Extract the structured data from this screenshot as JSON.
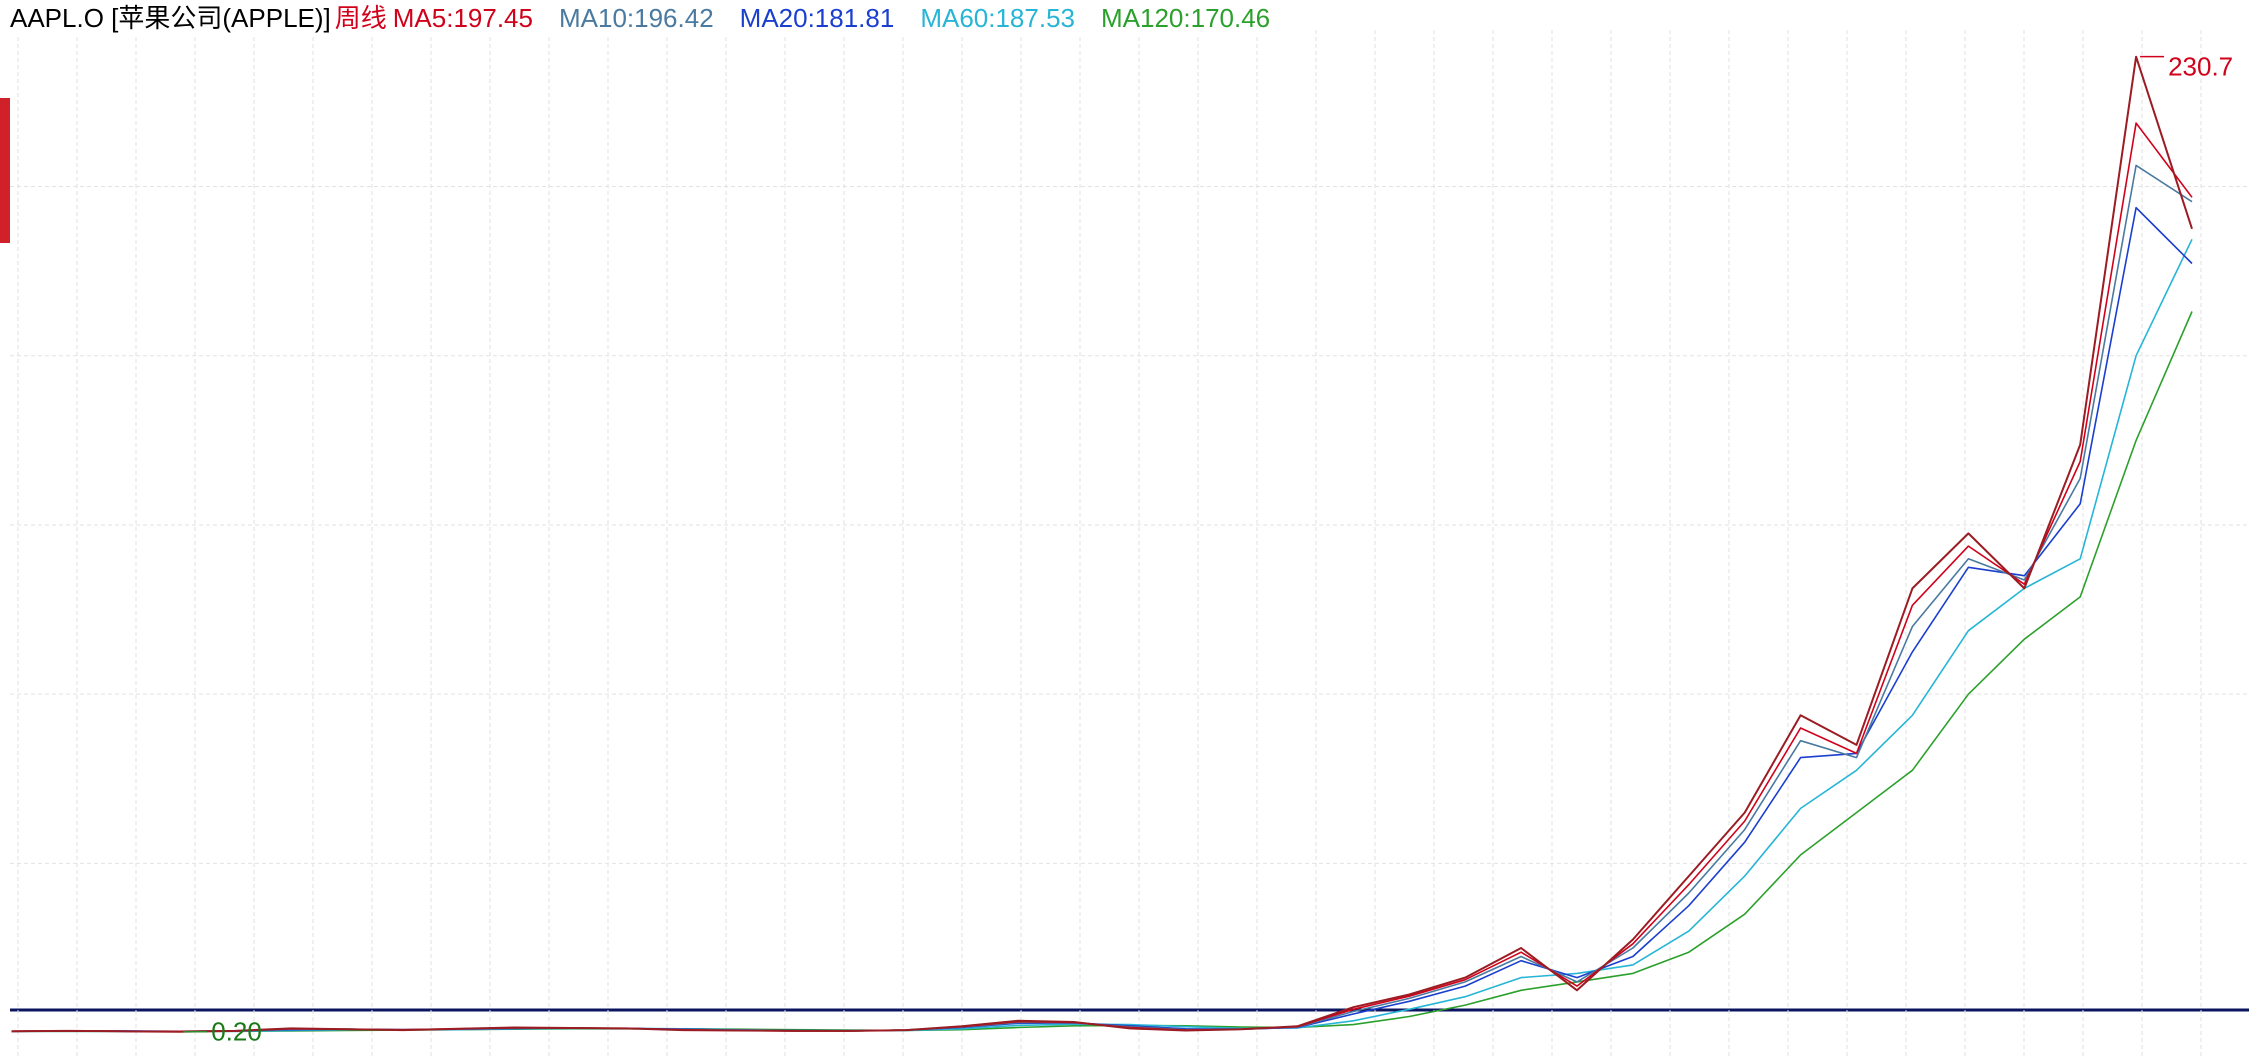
{
  "chart_data": {
    "type": "line",
    "title": "AAPL.O [苹果公司(APPLE)]",
    "period": "周线",
    "ylim": [
      -6,
      237
    ],
    "yticks": [
      40,
      80,
      120,
      160,
      200
    ],
    "grid": true,
    "price": {
      "color": "#9b1c22",
      "values": [
        0.3,
        0.4,
        0.3,
        0.2,
        0.4,
        1.0,
        0.8,
        0.6,
        0.9,
        1.2,
        1.1,
        1.0,
        0.6,
        0.5,
        0.4,
        0.4,
        0.6,
        1.5,
        2.8,
        2.5,
        1.0,
        0.5,
        0.8,
        1.5,
        6,
        9,
        13,
        20,
        10,
        22,
        37,
        52,
        75,
        68,
        105,
        118,
        105,
        139,
        230.7,
        190
      ],
      "value_labels": [
        null,
        null,
        null,
        "0.20",
        null,
        null,
        null,
        null,
        null,
        null,
        null,
        null,
        null,
        null,
        null,
        null,
        null,
        null,
        null,
        null,
        null,
        null,
        null,
        null,
        null,
        null,
        null,
        null,
        null,
        null,
        null,
        null,
        null,
        null,
        null,
        null,
        null,
        null,
        "230.7",
        null
      ]
    },
    "series": [
      {
        "name": "MA5:197.45",
        "color": "#d0021b",
        "values": [
          0.3,
          0.4,
          0.3,
          0.3,
          0.4,
          0.9,
          0.8,
          0.7,
          0.9,
          1.1,
          1.1,
          1.0,
          0.7,
          0.5,
          0.4,
          0.4,
          0.6,
          1.4,
          2.6,
          2.4,
          1.2,
          0.6,
          0.8,
          1.4,
          5.5,
          8.6,
          12.5,
          19,
          11,
          21,
          35,
          50,
          72,
          66,
          101,
          115,
          106,
          135,
          215,
          197.45
        ]
      },
      {
        "name": "MA10:196.42",
        "color": "#4a7aa0",
        "values": [
          0.3,
          0.4,
          0.3,
          0.3,
          0.4,
          0.8,
          0.8,
          0.7,
          0.8,
          1.1,
          1.1,
          1.0,
          0.7,
          0.6,
          0.4,
          0.4,
          0.6,
          1.3,
          2.4,
          2.3,
          1.4,
          0.7,
          0.8,
          1.3,
          5,
          8.1,
          12,
          18,
          12,
          20,
          33,
          48,
          69,
          65,
          96,
          112,
          107,
          131,
          205,
          196.42
        ]
      },
      {
        "name": "MA20:181.81",
        "color": "#1a3fcf",
        "values": [
          0.3,
          0.4,
          0.4,
          0.3,
          0.4,
          0.7,
          0.8,
          0.7,
          0.8,
          1.0,
          1.1,
          1.0,
          0.8,
          0.6,
          0.5,
          0.4,
          0.6,
          1.2,
          2.2,
          2.3,
          1.6,
          0.9,
          0.8,
          1.2,
          4.4,
          7.4,
          11,
          17,
          13,
          18,
          30,
          45,
          65,
          66,
          90,
          110,
          108,
          125,
          195,
          181.81
        ]
      },
      {
        "name": "MA60:187.53",
        "color": "#27b5d6",
        "values": [
          0.3,
          0.3,
          0.3,
          0.3,
          0.3,
          0.5,
          0.7,
          0.7,
          0.7,
          0.9,
          1.0,
          1.0,
          0.9,
          0.7,
          0.5,
          0.5,
          0.5,
          0.9,
          1.7,
          2.0,
          1.9,
          1.4,
          1.0,
          1.1,
          2.8,
          5.5,
          8.5,
          13,
          14,
          16,
          24,
          37,
          53,
          62,
          75,
          95,
          105,
          112,
          160,
          187.53
        ]
      },
      {
        "name": "MA120:170.46",
        "color": "#2ca02c",
        "values": [
          0.3,
          0.3,
          0.3,
          0.3,
          0.3,
          0.4,
          0.5,
          0.6,
          0.7,
          0.8,
          0.9,
          0.9,
          0.9,
          0.8,
          0.7,
          0.6,
          0.5,
          0.7,
          1.2,
          1.6,
          1.7,
          1.6,
          1.3,
          1.2,
          1.9,
          3.8,
          6.5,
          10,
          12,
          14,
          19,
          28,
          42,
          52,
          62,
          80,
          93,
          103,
          140,
          170.46
        ]
      }
    ]
  }
}
